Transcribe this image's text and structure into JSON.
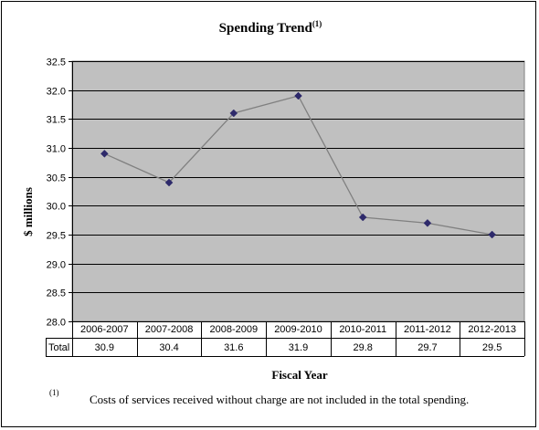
{
  "chart_data": {
    "type": "line",
    "title": "Spending Trend",
    "title_superscript": "(1)",
    "xlabel": "Fiscal Year",
    "ylabel": "$ millions",
    "ylim": [
      28.0,
      32.5
    ],
    "ytick_step": 0.5,
    "yticks": [
      "28.0",
      "28.5",
      "29.0",
      "29.5",
      "30.0",
      "30.5",
      "31.0",
      "31.5",
      "32.0",
      "32.5"
    ],
    "categories": [
      "2006-2007",
      "2007-2008",
      "2008-2009",
      "2009-2010",
      "2010-2011",
      "2011-2012",
      "2012-2013"
    ],
    "series": [
      {
        "name": "Total",
        "values": [
          30.9,
          30.4,
          31.6,
          31.9,
          29.8,
          29.7,
          29.5
        ],
        "value_labels": [
          "30.9",
          "30.4",
          "31.6",
          "31.9",
          "29.8",
          "29.7",
          "29.5"
        ]
      }
    ],
    "grid": true,
    "colors": {
      "plot_bg": "#c0c0c0",
      "line": "#808080",
      "marker": "#2e2a6b",
      "grid": "#000000"
    },
    "data_table": true
  },
  "footnote": {
    "marker": "(1)",
    "text": "Costs of services received without charge are not included in the total spending."
  }
}
